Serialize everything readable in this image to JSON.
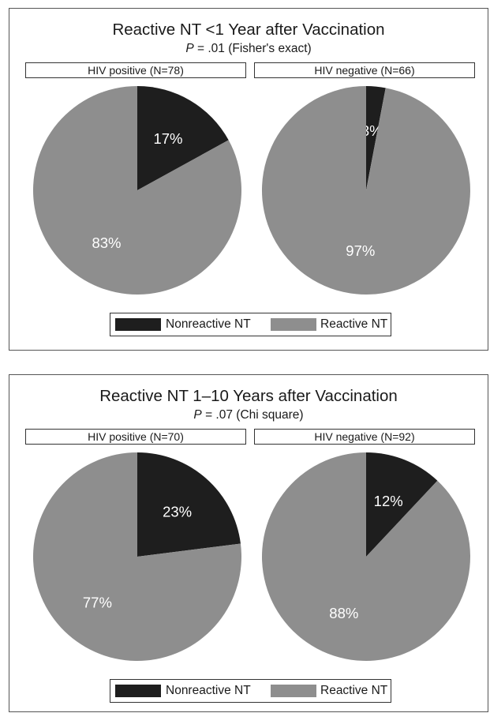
{
  "colors": {
    "nonreactive": "#1e1e1e",
    "reactive": "#8e8e8e"
  },
  "chart_data": [
    {
      "type": "pie",
      "title": "Reactive NT <1 Year after Vaccination",
      "subtitle_p": "P",
      "subtitle_rest": " = .01 (Fisher's exact)",
      "legend": [
        "Nonreactive NT",
        "Reactive NT"
      ],
      "legend_placement": "bottom",
      "panels": [
        {
          "label": "HIV positive (N=78)",
          "categories": [
            "Nonreactive NT",
            "Reactive NT"
          ],
          "values": [
            17,
            83
          ],
          "value_labels": [
            "17%",
            "83%"
          ]
        },
        {
          "label": "HIV negative (N=66)",
          "categories": [
            "Nonreactive NT",
            "Reactive NT"
          ],
          "values": [
            3,
            97
          ],
          "value_labels": [
            "3%",
            "97%"
          ]
        }
      ]
    },
    {
      "type": "pie",
      "title": "Reactive NT 1–10 Years after Vaccination",
      "subtitle_p": "P",
      "subtitle_rest": " = .07 (Chi square)",
      "legend": [
        "Nonreactive NT",
        "Reactive NT"
      ],
      "legend_placement": "bottom",
      "panels": [
        {
          "label": "HIV positive (N=70)",
          "categories": [
            "Nonreactive NT",
            "Reactive NT"
          ],
          "values": [
            23,
            77
          ],
          "value_labels": [
            "23%",
            "77%"
          ]
        },
        {
          "label": "HIV negative (N=92)",
          "categories": [
            "Nonreactive NT",
            "Reactive NT"
          ],
          "values": [
            12,
            88
          ],
          "value_labels": [
            "12%",
            "88%"
          ]
        }
      ]
    }
  ]
}
